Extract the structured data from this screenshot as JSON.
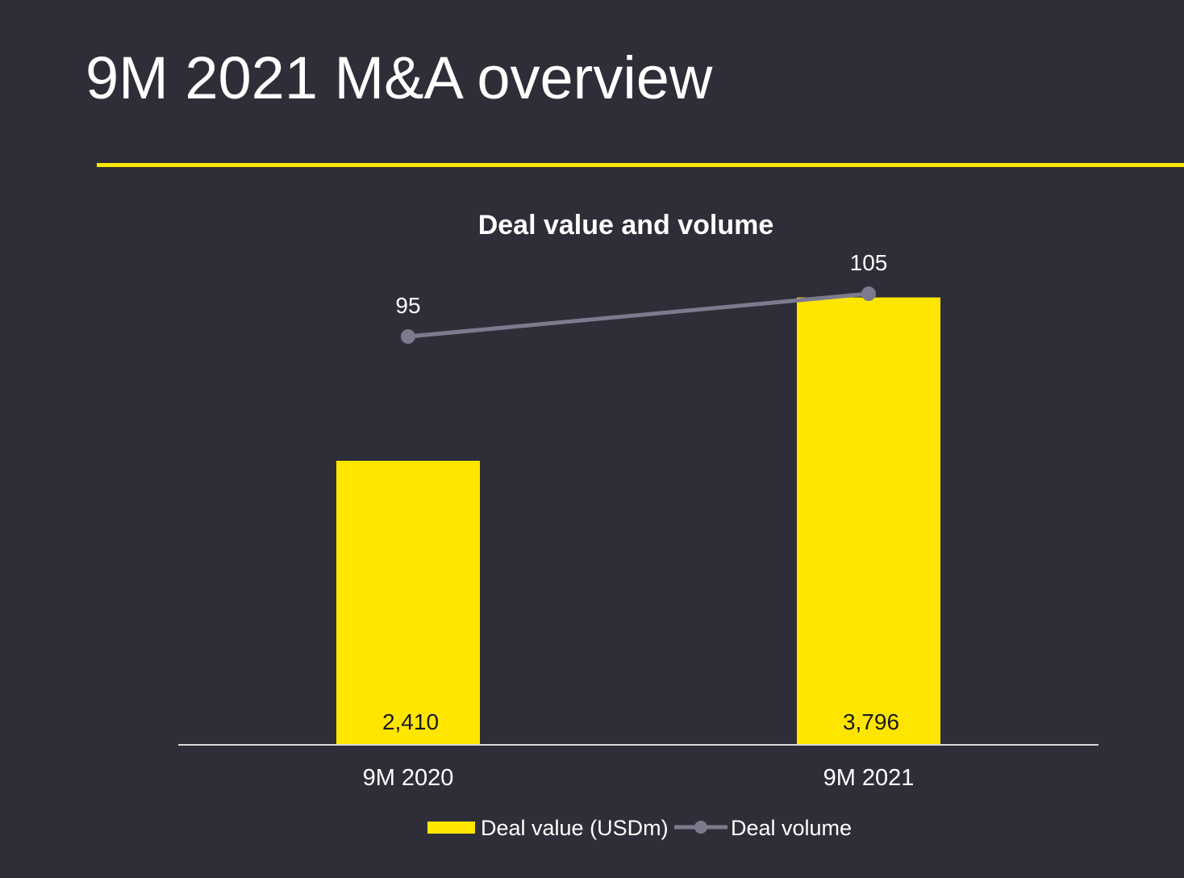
{
  "slide": {
    "title": "9M 2021 M&A overview",
    "background_color": "#2e2e38",
    "accent_color": "#ffe600"
  },
  "chart_data": {
    "type": "bar",
    "title": "Deal value and volume",
    "categories": [
      "9M 2020",
      "9M 2021"
    ],
    "series": [
      {
        "name": "Deal value (USDm)",
        "type": "bar",
        "values": [
          2410,
          3796
        ],
        "labels": [
          "2,410",
          "3,796"
        ],
        "color": "#ffe600"
      },
      {
        "name": "Deal volume",
        "type": "line",
        "values": [
          95,
          105
        ],
        "labels": [
          "95",
          "105"
        ],
        "color": "#7c7b8e"
      }
    ],
    "xlabel": "",
    "ylabel": "",
    "bar_ylim": [
      0,
      3800
    ],
    "line_ylim": [
      0,
      170
    ],
    "grid": false,
    "legend_position": "bottom"
  }
}
